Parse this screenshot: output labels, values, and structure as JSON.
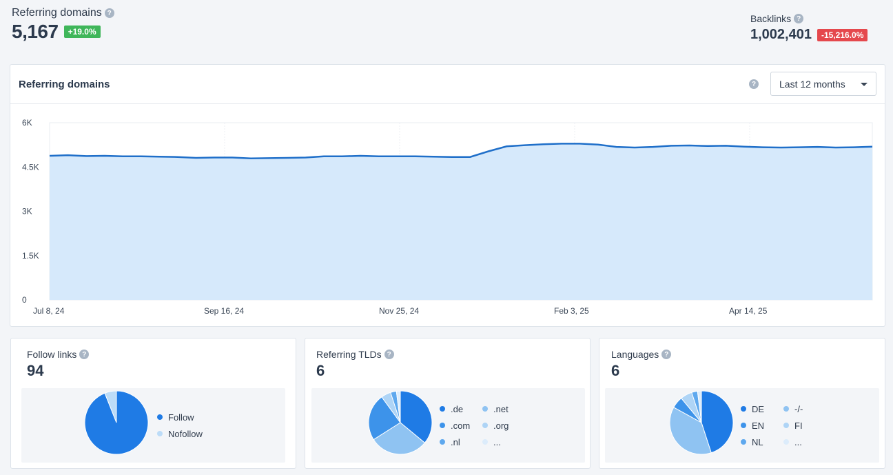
{
  "summary": {
    "referring_domains": {
      "label": "Referring domains",
      "value": "5,167",
      "change": "+19.0%"
    },
    "backlinks": {
      "label": "Backlinks",
      "value": "1,002,401",
      "change": "-15,216.0%"
    }
  },
  "main_card": {
    "title": "Referring domains",
    "period_select": "Last 12 months"
  },
  "chart_data": {
    "type": "area",
    "title": "Referring domains",
    "y_ticks": [
      "6K",
      "4.5K",
      "3K",
      "1.5K",
      "0"
    ],
    "ylim": [
      0,
      6000
    ],
    "x_tick_labels": [
      "Jul 8, 24",
      "Sep 16, 24",
      "Nov 25, 24",
      "Feb 3, 25",
      "Apr 14, 25"
    ],
    "grid": true,
    "series": [
      {
        "values": [
          4880,
          4900,
          4870,
          4880,
          4860,
          4860,
          4850,
          4840,
          4810,
          4820,
          4820,
          4790,
          4800,
          4810,
          4820,
          4860,
          4860,
          4880,
          4860,
          4860,
          4860,
          4850,
          4840,
          4840,
          5030,
          5200,
          5240,
          5270,
          5290,
          5290,
          5260,
          5180,
          5160,
          5180,
          5220,
          5230,
          5210,
          5220,
          5190,
          5170,
          5160,
          5170,
          5180,
          5160,
          5170,
          5190
        ]
      }
    ],
    "colors": {
      "line": "#1f6fc9",
      "fill": "#d6e9fb"
    }
  },
  "follow_links": {
    "title": "Follow links",
    "value": "94",
    "legend": [
      {
        "label": "Follow",
        "color": "#1f7be5"
      },
      {
        "label": "Nofollow",
        "color": "#bcdcf8"
      }
    ],
    "slices": [
      0.94,
      0.06
    ]
  },
  "referring_tlds": {
    "title": "Referring TLDs",
    "value": "6",
    "legend": [
      {
        "label": ".de",
        "color": "#1f7be5"
      },
      {
        "label": ".net",
        "color": "#8fc3f2"
      },
      {
        "label": ".com",
        "color": "#3d93ea"
      },
      {
        "label": ".org",
        "color": "#aed4f6"
      },
      {
        "label": ".nl",
        "color": "#5ea8ee"
      },
      {
        "label": "...",
        "color": "#dcecfb"
      }
    ],
    "slices": [
      0.36,
      0.3,
      0.24,
      0.05,
      0.03,
      0.02
    ]
  },
  "languages": {
    "title": "Languages",
    "value": "6",
    "legend": [
      {
        "label": "DE",
        "color": "#1f7be5"
      },
      {
        "label": "-/-",
        "color": "#8fc3f2"
      },
      {
        "label": "EN",
        "color": "#3d93ea"
      },
      {
        "label": "FI",
        "color": "#aed4f6"
      },
      {
        "label": "NL",
        "color": "#5ea8ee"
      },
      {
        "label": "...",
        "color": "#dcecfb"
      }
    ],
    "slices": [
      0.45,
      0.38,
      0.06,
      0.06,
      0.03,
      0.02
    ]
  }
}
